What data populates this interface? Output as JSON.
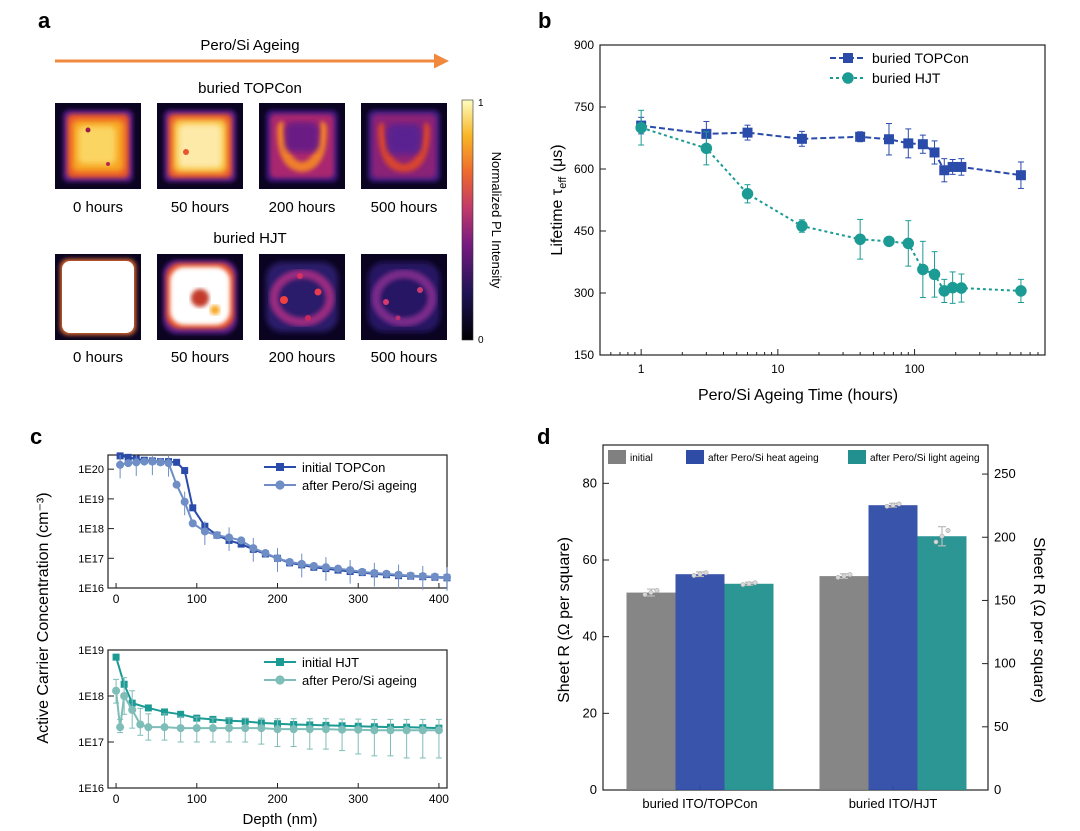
{
  "colors": {
    "topcon": "#2b4bab",
    "topcon_after": "#6e8ec5",
    "hjt": "#1c9b95",
    "hjt_after": "#7fbdb8",
    "initial_bar": "#808080",
    "heat_bar": "#2e4ba6",
    "light_bar": "#21908f",
    "arrow": "#f0883e"
  },
  "panel_a": {
    "letter": "a",
    "arrow_label": "Pero/Si Ageing",
    "groups": [
      {
        "title": "buried TOPCon",
        "images": [
          {
            "label": "0 hours",
            "level": 0.88
          },
          {
            "label": "50 hours",
            "level": 0.9
          },
          {
            "label": "200 hours",
            "level": 0.6
          },
          {
            "label": "500 hours",
            "level": 0.5
          }
        ]
      },
      {
        "title": "buried HJT",
        "images": [
          {
            "label": "0 hours",
            "level": 1.0
          },
          {
            "label": "50 hours",
            "level": 0.85
          },
          {
            "label": "200 hours",
            "level": 0.35
          },
          {
            "label": "500 hours",
            "level": 0.28
          }
        ]
      }
    ],
    "colorbar": {
      "label": "Normalized PL Intensity",
      "max": "1",
      "min": "0"
    }
  },
  "chart_data": [
    {
      "panel": "b",
      "type": "line",
      "xlabel": "Pero/Si Ageing Time (hours)",
      "ylabel_main": "Lifetime τ",
      "ylabel_sub": "eff",
      "ylabel_unit": " (μs)",
      "xscale": "log",
      "xlim": [
        0.5,
        900
      ],
      "ylim": [
        150,
        900
      ],
      "xticks": [
        {
          "v": 1,
          "label": "1"
        },
        {
          "v": 10,
          "label": "10"
        },
        {
          "v": 100,
          "label": "100"
        }
      ],
      "yticks": [
        150,
        300,
        450,
        600,
        750,
        900
      ],
      "legend": "top-right",
      "series": [
        {
          "name": "buried TOPCon",
          "marker": "square",
          "color": "#2b4bab",
          "x": [
            1,
            3,
            6,
            15,
            40,
            65,
            90,
            115,
            140,
            165,
            190,
            220,
            600
          ],
          "y": [
            705,
            685,
            688,
            673,
            678,
            672,
            662,
            660,
            640,
            597,
            605,
            605,
            585
          ],
          "err": [
            20,
            30,
            18,
            18,
            12,
            38,
            35,
            22,
            28,
            28,
            18,
            20,
            32
          ]
        },
        {
          "name": "buried HJT",
          "marker": "circle",
          "color": "#1c9b95",
          "x": [
            1,
            3,
            6,
            15,
            40,
            65,
            90,
            115,
            140,
            165,
            190,
            220,
            600
          ],
          "y": [
            700,
            650,
            540,
            462,
            430,
            425,
            420,
            357,
            345,
            305,
            313,
            312,
            305
          ],
          "err": [
            42,
            40,
            22,
            15,
            48,
            5,
            55,
            68,
            55,
            28,
            38,
            34,
            28
          ]
        }
      ]
    },
    {
      "panel": "c-top",
      "type": "line",
      "ylabel": "Active Carrier Concentration (cm⁻³)",
      "yscale": "log",
      "xlim": [
        -10,
        410
      ],
      "ylim": [
        1e+16,
        3e+20
      ],
      "xticks": [
        0,
        100,
        200,
        300,
        400
      ],
      "yticks": [
        {
          "v": 1e+16,
          "label": "1E16"
        },
        {
          "v": 1e+17,
          "label": "1E17"
        },
        {
          "v": 1e+18,
          "label": "1E18"
        },
        {
          "v": 1e+19,
          "label": "1E19"
        },
        {
          "v": 1e+20,
          "label": "1E20"
        }
      ],
      "legend": "top-right",
      "series": [
        {
          "name": "initial TOPCon",
          "marker": "square",
          "color": "#2b4bab",
          "x": [
            5,
            15,
            25,
            35,
            45,
            55,
            65,
            75,
            85,
            95,
            110,
            125,
            140,
            155,
            170,
            185,
            200,
            215,
            230,
            245,
            260,
            275,
            290,
            305,
            320,
            335,
            350,
            365,
            380,
            395,
            410
          ],
          "y": [
            2.8e+20,
            2.5e+20,
            2.2e+20,
            2e+20,
            1.9e+20,
            1.8e+20,
            1.8e+20,
            1.7e+20,
            9e+19,
            5e+18,
            1.2e+18,
            6e+17,
            4e+17,
            3e+17,
            2e+17,
            1.4e+17,
            1e+17,
            7e+16,
            6e+16,
            5e+16,
            4.5e+16,
            4e+16,
            3.6e+16,
            3.3e+16,
            3e+16,
            2.8e+16,
            2.6e+16,
            2.5e+16,
            2.4e+16,
            2.3e+16,
            2.2e+16
          ]
        },
        {
          "name": "after Pero/Si ageing",
          "marker": "circle",
          "color": "#6e8ec5",
          "x": [
            5,
            15,
            25,
            35,
            45,
            55,
            65,
            75,
            85,
            95,
            110,
            125,
            140,
            155,
            170,
            185,
            200,
            215,
            230,
            245,
            260,
            275,
            290,
            305,
            320,
            335,
            350,
            365,
            380,
            395,
            410
          ],
          "y": [
            1.4e+20,
            1.6e+20,
            1.7e+20,
            1.8e+20,
            1.8e+20,
            1.7e+20,
            1.6e+20,
            3e+19,
            8e+18,
            1.5e+18,
            8e+17,
            6e+17,
            5e+17,
            4e+17,
            2.2e+17,
            1.5e+17,
            1e+17,
            7.5e+16,
            6.5e+16,
            5.5e+16,
            5e+16,
            4.5e+16,
            4e+16,
            3.5e+16,
            3.2e+16,
            3e+16,
            2.8e+16,
            2.6e+16,
            2.5e+16,
            2.4e+16,
            2.3e+16
          ]
        }
      ]
    },
    {
      "panel": "c-bottom",
      "type": "line",
      "xlabel": "Depth (nm)",
      "yscale": "log",
      "xlim": [
        -10,
        410
      ],
      "ylim": [
        1e+16,
        1e+19
      ],
      "xticks": [
        0,
        100,
        200,
        300,
        400
      ],
      "yticks": [
        {
          "v": 1e+16,
          "label": "1E16"
        },
        {
          "v": 1e+17,
          "label": "1E17"
        },
        {
          "v": 1e+18,
          "label": "1E18"
        },
        {
          "v": 1e+19,
          "label": "1E19"
        }
      ],
      "legend": "top-right",
      "series": [
        {
          "name": "initial HJT",
          "marker": "square",
          "color": "#1c9b95",
          "x": [
            0,
            10,
            20,
            40,
            60,
            80,
            100,
            120,
            140,
            160,
            180,
            200,
            220,
            240,
            260,
            280,
            300,
            320,
            340,
            360,
            380,
            400
          ],
          "y": [
            7e+18,
            1.8e+18,
            7e+17,
            5.5e+17,
            4.5e+17,
            4e+17,
            3.3e+17,
            3.1e+17,
            2.9e+17,
            2.8e+17,
            2.6e+17,
            2.5e+17,
            2.4e+17,
            2.35e+17,
            2.3e+17,
            2.25e+17,
            2.2e+17,
            2.15e+17,
            2.1e+17,
            2.1e+17,
            2.05e+17,
            2e+17
          ]
        },
        {
          "name": "after Pero/Si ageing",
          "marker": "circle",
          "color": "#7fbdb8",
          "x": [
            0,
            5,
            10,
            20,
            30,
            40,
            60,
            80,
            100,
            120,
            140,
            160,
            180,
            200,
            220,
            240,
            260,
            280,
            300,
            320,
            340,
            360,
            380,
            400
          ],
          "y": [
            1.3e+18,
            2.1e+17,
            1e+18,
            5e+17,
            2.4e+17,
            2.1e+17,
            2.1e+17,
            2e+17,
            2e+17,
            2e+17,
            2e+17,
            2e+17,
            2e+17,
            1.9e+17,
            1.9e+17,
            1.9e+17,
            1.9e+17,
            1.85e+17,
            1.85e+17,
            1.8e+17,
            1.8e+17,
            1.8e+17,
            1.8e+17,
            1.8e+17
          ],
          "err_low": [
            6e+17,
            5e+16,
            6e+17,
            3e+17,
            1e+17,
            1e+17,
            1e+17,
            1e+17,
            1e+17,
            1e+17,
            1e+17,
            1e+17,
            1.1e+17,
            1.1e+17,
            1.1e+17,
            1.2e+17,
            1.2e+17,
            1.2e+17,
            1.3e+17,
            1.3e+17,
            1.3e+17,
            1.35e+17,
            1.35e+17,
            1.35e+17
          ],
          "err_high": [
            1e+18,
            1e+17,
            1.5e+18,
            8e+17,
            3e+17,
            2e+17,
            2e+17,
            1.5e+17,
            1.5e+17,
            1.3e+17,
            1.3e+17,
            1.3e+17,
            1.3e+17,
            1.3e+17,
            1.3e+17,
            1.3e+17,
            1.3e+17,
            1.3e+17,
            1.3e+17,
            1.3e+17,
            1.3e+17,
            1.3e+17,
            1.3e+17,
            1.3e+17
          ]
        }
      ]
    },
    {
      "panel": "d",
      "type": "bar",
      "categories": [
        "buried ITO/TOPCon",
        "buried ITO/HJT"
      ],
      "ylabel_left": "Sheet R (Ω per square)",
      "ylabel_right": "Sheet R (Ω per square)",
      "ylim": [
        0,
        90
      ],
      "ylim_right": [
        0,
        273
      ],
      "yticks": [
        0,
        20,
        40,
        60,
        80
      ],
      "yticks_right": [
        0,
        50,
        100,
        150,
        200,
        250
      ],
      "legend": "top",
      "series": [
        {
          "name": "initial",
          "color": "#808080",
          "values": [
            51.5,
            55.8
          ],
          "err": [
            0.9,
            0.6
          ]
        },
        {
          "name": "after Pero/Si heat ageing",
          "color": "#2e4ba6",
          "values": [
            56.3,
            74.3
          ],
          "err": [
            0.6,
            0.5
          ]
        },
        {
          "name": "after Pero/Si light ageing",
          "color": "#21908f",
          "values": [
            53.8,
            66.2
          ],
          "err": [
            0.4,
            2.5
          ]
        }
      ]
    }
  ],
  "letters": {
    "b": "b",
    "c": "c",
    "d": "d"
  }
}
